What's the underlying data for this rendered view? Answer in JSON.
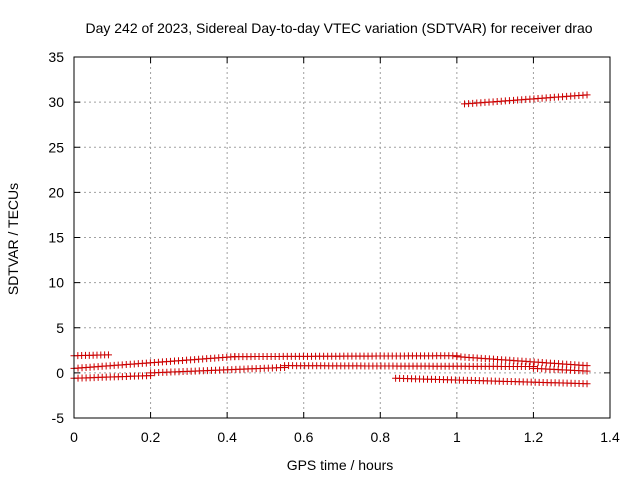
{
  "chart_data": {
    "type": "scatter",
    "title": "Day 242 of 2023, Sidereal Day-to-day VTEC variation (SDTVAR) for receiver drao",
    "xlabel": "GPS time / hours",
    "ylabel": "SDTVAR / TECUs",
    "xlim": [
      0,
      1.4
    ],
    "ylim": [
      -5,
      35
    ],
    "xticks": [
      0,
      0.2,
      0.4,
      0.6,
      0.8,
      1,
      1.2,
      1.4
    ],
    "xtick_labels": [
      "0",
      "0.2",
      "0.4",
      "0.6",
      "0.8",
      "1",
      "1.2",
      "1.4"
    ],
    "yticks": [
      -5,
      0,
      5,
      10,
      15,
      20,
      25,
      30,
      35
    ],
    "ytick_labels": [
      "-5",
      "0",
      "5",
      "10",
      "15",
      "20",
      "25",
      "30",
      "35"
    ],
    "grid": true,
    "marker": "+",
    "color": "#cc0000",
    "series": [
      {
        "name": "s1",
        "x_start": 0.0,
        "x_end": 0.09,
        "y_start": 1.9,
        "y_end": 2.0
      },
      {
        "name": "s2",
        "x_start": 0.0,
        "x_end": 0.42,
        "y_start": 0.5,
        "y_end": 1.8
      },
      {
        "name": "s3",
        "x_start": 0.42,
        "x_end": 1.0,
        "y_start": 1.8,
        "y_end": 1.9
      },
      {
        "name": "s4",
        "x_start": 1.0,
        "x_end": 1.34,
        "y_start": 1.8,
        "y_end": 0.8
      },
      {
        "name": "s5",
        "x_start": 0.0,
        "x_end": 0.2,
        "y_start": -0.6,
        "y_end": -0.3
      },
      {
        "name": "s6",
        "x_start": 0.2,
        "x_end": 0.55,
        "y_start": 0.0,
        "y_end": 0.6
      },
      {
        "name": "s7",
        "x_start": 0.55,
        "x_end": 1.2,
        "y_start": 0.8,
        "y_end": 0.7
      },
      {
        "name": "s8",
        "x_start": 1.2,
        "x_end": 1.34,
        "y_start": 0.5,
        "y_end": 0.2
      },
      {
        "name": "s9",
        "x_start": 0.84,
        "x_end": 1.34,
        "y_start": -0.6,
        "y_end": -1.2
      },
      {
        "name": "s10",
        "x_start": 1.02,
        "x_end": 1.34,
        "y_start": 29.8,
        "y_end": 30.8
      }
    ]
  }
}
